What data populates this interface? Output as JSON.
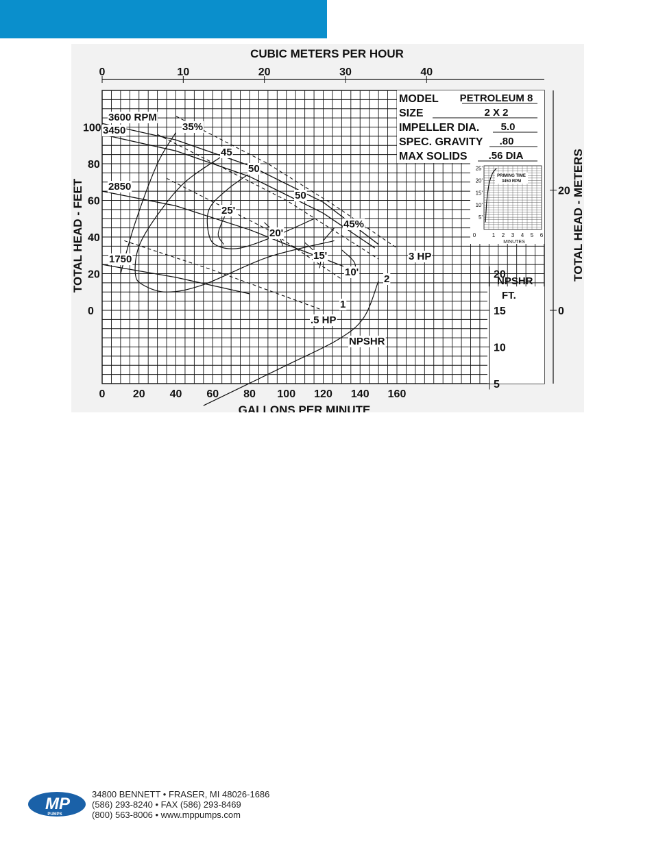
{
  "brand": {
    "bar_color": "#0a8fcc",
    "logo_text": "MP",
    "logo_subtext": "PUMPS",
    "logo_color": "#1a61a8"
  },
  "chart_data": {
    "type": "line",
    "x_bottom": {
      "label": "GALLONS PER MINUTE",
      "ticks": [
        0,
        20,
        40,
        60,
        80,
        100,
        120,
        140,
        160
      ],
      "range": [
        0,
        240
      ]
    },
    "x_top": {
      "label": "CUBIC METERS PER HOUR",
      "ticks": [
        0,
        10,
        20,
        30,
        40
      ]
    },
    "y_left": {
      "label": "TOTAL HEAD - FEET",
      "ticks": [
        0,
        20,
        40,
        60,
        80,
        100
      ],
      "range": [
        -40,
        120
      ]
    },
    "y_right": {
      "label": "TOTAL HEAD - METERS",
      "ticks": [
        0,
        20
      ]
    },
    "npshr_axis": {
      "label_line1": "NPSHR",
      "label_line2": "FT.",
      "ticks": [
        20,
        15,
        10,
        5
      ]
    },
    "info_box": [
      {
        "label": "MODEL",
        "value": "PETROLEUM 8"
      },
      {
        "label": "SIZE",
        "value": "2 X 2"
      },
      {
        "label": "IMPELLER DIA.",
        "value": "5.0"
      },
      {
        "label": "SPEC. GRAVITY",
        "value": ".80"
      },
      {
        "label": "MAX SOLIDS",
        "value": ".56 DIA"
      }
    ],
    "inset": {
      "title_line1": "PRIMING TIME",
      "title_line2": "3450 RPM",
      "xlabel": "MINUTES",
      "x_ticks": [
        0,
        1,
        2,
        3,
        4,
        5,
        6
      ],
      "y_ticks": [
        "5'",
        "10'",
        "15'",
        "20'",
        "25'"
      ],
      "curve": [
        [
          0.15,
          3
        ],
        [
          0.3,
          12
        ],
        [
          0.55,
          19
        ],
        [
          0.9,
          23
        ],
        [
          1.3,
          25
        ]
      ]
    },
    "speed_curves": [
      {
        "name": "3600 RPM",
        "points": [
          [
            0,
            102
          ],
          [
            40,
            93
          ],
          [
            80,
            79
          ],
          [
            120,
            59
          ],
          [
            150,
            36
          ]
        ]
      },
      {
        "name": "3450",
        "points": [
          [
            0,
            96
          ],
          [
            40,
            87
          ],
          [
            80,
            73
          ],
          [
            120,
            53
          ],
          [
            148,
            34
          ]
        ]
      },
      {
        "name": "2850",
        "points": [
          [
            0,
            65
          ],
          [
            40,
            57
          ],
          [
            80,
            44
          ],
          [
            105,
            34
          ],
          [
            131,
            24
          ]
        ]
      },
      {
        "name": "1750",
        "points": [
          [
            0,
            25
          ],
          [
            40,
            18
          ],
          [
            80,
            9
          ],
          [
            80,
            5
          ]
        ]
      }
    ],
    "hp_lines": [
      {
        "name": "3 HP",
        "points": [
          [
            40,
            106
          ],
          [
            90,
            80
          ],
          [
            125,
            58
          ],
          [
            160,
            34
          ]
        ]
      },
      {
        "name": "2",
        "points": [
          [
            30,
            96
          ],
          [
            100,
            60
          ],
          [
            150,
            28
          ]
        ]
      },
      {
        "name": "1",
        "points": [
          [
            35,
            72
          ],
          [
            90,
            44
          ],
          [
            130,
            17
          ]
        ]
      },
      {
        "name": ".5 HP",
        "points": [
          [
            12,
            38
          ],
          [
            60,
            22
          ],
          [
            120,
            0
          ]
        ]
      }
    ],
    "efficiency_curves": [
      {
        "name": "35%",
        "points": [
          [
            40,
            97
          ],
          [
            30,
            80
          ],
          [
            18,
            48
          ],
          [
            10,
            20
          ]
        ]
      },
      {
        "name": "45",
        "points": [
          [
            65,
            84
          ],
          [
            45,
            70
          ],
          [
            30,
            52
          ],
          [
            20,
            35
          ],
          [
            18,
            20
          ],
          [
            22,
            14
          ],
          [
            35,
            10
          ],
          [
            55,
            14
          ],
          [
            90,
            29
          ],
          [
            126,
            38
          ]
        ]
      },
      {
        "name": "50",
        "points": [
          [
            82,
            76
          ],
          [
            68,
            66
          ],
          [
            58,
            55
          ],
          [
            58,
            41
          ],
          [
            63,
            35
          ],
          [
            75,
            34
          ],
          [
            95,
            41
          ],
          [
            115,
            50
          ]
        ]
      },
      {
        "name": "45%",
        "points": [
          [
            126,
            45
          ],
          [
            120,
            38
          ]
        ]
      }
    ],
    "npshr_lines": [
      {
        "name": "25'",
        "points": [
          [
            70,
            58
          ],
          [
            65,
            48
          ],
          [
            63,
            41
          ],
          [
            66,
            36
          ]
        ]
      },
      {
        "name": "20'",
        "points": [
          [
            88,
            48
          ],
          [
            96,
            40
          ],
          [
            98,
            35
          ]
        ]
      },
      {
        "name": "15'",
        "points": [
          [
            110,
            37
          ],
          [
            118,
            29
          ],
          [
            118,
            23
          ]
        ]
      },
      {
        "name": "10'",
        "points": [
          [
            130,
            33
          ],
          [
            137,
            26
          ],
          [
            137,
            19
          ]
        ]
      }
    ],
    "npshr_curve": {
      "name": "NPSHR",
      "points": [
        [
          55,
          2
        ],
        [
          100,
          7.5
        ],
        [
          128,
          11
        ],
        [
          142,
          14
        ],
        [
          150,
          19
        ]
      ]
    },
    "rpm_labels": [
      "3600 RPM",
      "3450",
      "2850",
      "1750"
    ],
    "hp_labels": [
      "3 HP",
      "2",
      "1",
      ".5 HP"
    ],
    "efficiency_labels": [
      "35%",
      "45",
      "50",
      "50",
      "45%"
    ],
    "npshr_labels": [
      "25'",
      "20'",
      "15'",
      "10'"
    ],
    "npshr_label": "NPSHR"
  },
  "contact": {
    "line1": "34800 BENNETT • FRASER, MI 48026-1686",
    "line2": "(586) 293-8240 • FAX (586) 293-8469",
    "line3": "(800) 563-8006 • www.mppumps.com"
  }
}
